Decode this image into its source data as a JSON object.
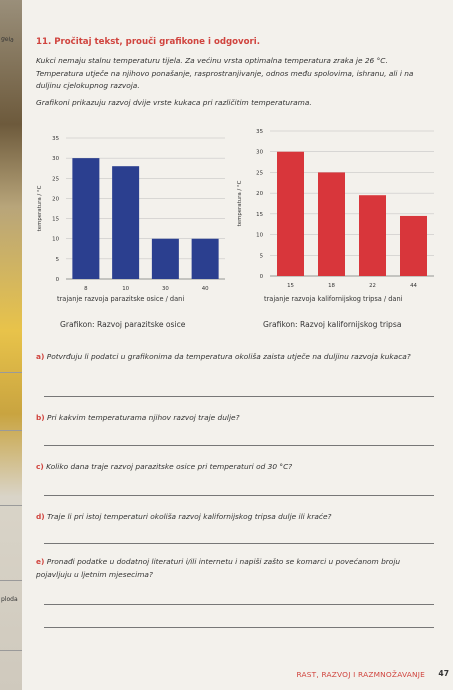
{
  "task": {
    "title": "11. Pročitaj tekst, prouči grafikone i odgovori.",
    "intro": "Kukci nemaju stalnu temperaturu tijela. Za većinu vrsta optimalna temperatura zraka je 26 °C. Temperatura utječe na njihovo ponašanje, rasprostranjivanje, odnos među spolovima, ishranu, ali i na duljinu cjelokupnog razvoja.",
    "graph_intro": "Grafikoni prikazuju razvoj dvije vrste kukaca pri različitim temperaturama."
  },
  "chart_data": [
    {
      "type": "bar",
      "categories": [
        "8",
        "10",
        "30",
        "40"
      ],
      "values": [
        30,
        28,
        10,
        10
      ],
      "ylim": [
        0,
        35
      ],
      "yticks": [
        0,
        5,
        10,
        15,
        20,
        25,
        30,
        35
      ],
      "ylabel": "temperatura / °C",
      "xlabel": "trajanje razvoja parazitske osice / dani",
      "caption": "Grafikon: Razvoj parazitske osice",
      "color": "#2b3f8f"
    },
    {
      "type": "bar",
      "categories": [
        "15",
        "18",
        "22",
        "44"
      ],
      "values": [
        30,
        25,
        19.5,
        14.5
      ],
      "ylim": [
        0,
        35
      ],
      "yticks": [
        0,
        5,
        10,
        15,
        20,
        25,
        30,
        35
      ],
      "ylabel": "temperatura / °C",
      "xlabel": "trajanje razvoja kalifornijskog tripsa / dani",
      "caption": "Grafikon: Razvoj kalifornijskog tripsa",
      "color": "#d8363b"
    }
  ],
  "questions": [
    {
      "label": "a)",
      "text": "Potvrđuju li podatci u grafikonima da temperatura okoliša zaista utječe na duljinu razvoja kukaca?"
    },
    {
      "label": "b)",
      "text": "Pri kakvim temperaturama njihov razvoj traje dulje?"
    },
    {
      "label": "c)",
      "text": "Koliko dana traje razvoj parazitske osice pri temperaturi od 30 °C?"
    },
    {
      "label": "d)",
      "text": "Traje li pri istoj temperaturi okoliša razvoj kalifornijskog tripsa dulje ili kraće?"
    },
    {
      "label": "e)",
      "text": "Pronađi podatke u dodatnoj literaturi i/ili internetu i napiši zašto se komarci u povećanom broju pojavljuju u ljetnim mjesecima?"
    }
  ],
  "footer": {
    "section": "RAST, RAZVOJ I RAZMNOŽAVANJE",
    "page": "47"
  },
  "margin": {
    "tag_top": "gela",
    "tag_bottom": "ploda"
  }
}
